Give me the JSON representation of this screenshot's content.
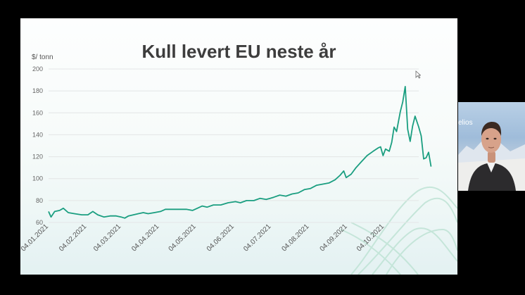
{
  "slide": {
    "title": "Kull levert EU neste år"
  },
  "chart_data": {
    "type": "line",
    "title": "Kull levert EU neste år",
    "ylabel": "$/ tonn",
    "xlabel": "",
    "ylim": [
      60,
      200
    ],
    "yticks": [
      60,
      80,
      100,
      120,
      140,
      160,
      180,
      200
    ],
    "ytick_labels": [
      "60",
      "80",
      "100",
      "120",
      "140",
      "160",
      "180",
      "200"
    ],
    "xlim": [
      "2021-01-04",
      "2021-11-01"
    ],
    "xticks": [
      "2021-01-04",
      "2021-02-04",
      "2021-03-04",
      "2021-04-04",
      "2021-05-04",
      "2021-06-04",
      "2021-07-04",
      "2021-08-04",
      "2021-09-04",
      "2021-10-04"
    ],
    "xtick_labels": [
      "04.01.2021",
      "04.02.2021",
      "04.03.2021",
      "04.04.2021",
      "04.05.2021",
      "04.06.2021",
      "04.07.2021",
      "04.08.2021",
      "04.09.2021",
      "04.10.2021"
    ],
    "grid": true,
    "line_color": "#1a9e80",
    "series": [
      {
        "points": [
          [
            "2021-01-04",
            70
          ],
          [
            "2021-01-06",
            65
          ],
          [
            "2021-01-09",
            70
          ],
          [
            "2021-01-13",
            71
          ],
          [
            "2021-01-16",
            73
          ],
          [
            "2021-01-20",
            69
          ],
          [
            "2021-01-25",
            68
          ],
          [
            "2021-01-31",
            67
          ],
          [
            "2021-02-05",
            67
          ],
          [
            "2021-02-09",
            70
          ],
          [
            "2021-02-13",
            67
          ],
          [
            "2021-02-18",
            65
          ],
          [
            "2021-02-23",
            66
          ],
          [
            "2021-02-28",
            66
          ],
          [
            "2021-03-04",
            65
          ],
          [
            "2021-03-07",
            64
          ],
          [
            "2021-03-10",
            66
          ],
          [
            "2021-03-14",
            67
          ],
          [
            "2021-03-18",
            68
          ],
          [
            "2021-03-22",
            69
          ],
          [
            "2021-03-26",
            68
          ],
          [
            "2021-03-31",
            69
          ],
          [
            "2021-04-05",
            70
          ],
          [
            "2021-04-09",
            72
          ],
          [
            "2021-04-14",
            72
          ],
          [
            "2021-04-20",
            72
          ],
          [
            "2021-04-26",
            72
          ],
          [
            "2021-05-01",
            71
          ],
          [
            "2021-05-05",
            73
          ],
          [
            "2021-05-09",
            75
          ],
          [
            "2021-05-13",
            74
          ],
          [
            "2021-05-18",
            76
          ],
          [
            "2021-05-24",
            76
          ],
          [
            "2021-05-30",
            78
          ],
          [
            "2021-06-05",
            79
          ],
          [
            "2021-06-09",
            78
          ],
          [
            "2021-06-14",
            80
          ],
          [
            "2021-06-20",
            80
          ],
          [
            "2021-06-25",
            82
          ],
          [
            "2021-06-30",
            81
          ],
          [
            "2021-07-06",
            83
          ],
          [
            "2021-07-11",
            85
          ],
          [
            "2021-07-16",
            84
          ],
          [
            "2021-07-21",
            86
          ],
          [
            "2021-07-26",
            87
          ],
          [
            "2021-07-31",
            90
          ],
          [
            "2021-08-05",
            91
          ],
          [
            "2021-08-10",
            94
          ],
          [
            "2021-08-15",
            95
          ],
          [
            "2021-08-20",
            96
          ],
          [
            "2021-08-25",
            99
          ],
          [
            "2021-08-29",
            103
          ],
          [
            "2021-09-01",
            107
          ],
          [
            "2021-09-03",
            101
          ],
          [
            "2021-09-07",
            104
          ],
          [
            "2021-09-11",
            110
          ],
          [
            "2021-09-15",
            115
          ],
          [
            "2021-09-20",
            121
          ],
          [
            "2021-09-25",
            125
          ],
          [
            "2021-09-29",
            128
          ],
          [
            "2021-10-01",
            129
          ],
          [
            "2021-10-03",
            121
          ],
          [
            "2021-10-05",
            127
          ],
          [
            "2021-10-08",
            125
          ],
          [
            "2021-10-10",
            133
          ],
          [
            "2021-10-12",
            147
          ],
          [
            "2021-10-14",
            143
          ],
          [
            "2021-10-17",
            161
          ],
          [
            "2021-10-19",
            170
          ],
          [
            "2021-10-21",
            184
          ],
          [
            "2021-10-23",
            145
          ],
          [
            "2021-10-25",
            134
          ],
          [
            "2021-10-27",
            148
          ],
          [
            "2021-10-29",
            157
          ],
          [
            "2021-11-01",
            147
          ],
          [
            "2021-11-03",
            139
          ],
          [
            "2021-11-05",
            118
          ],
          [
            "2021-11-07",
            119
          ],
          [
            "2021-11-09",
            124
          ],
          [
            "2021-11-11",
            111
          ]
        ]
      }
    ]
  },
  "video": {
    "brand_text": "elios"
  }
}
